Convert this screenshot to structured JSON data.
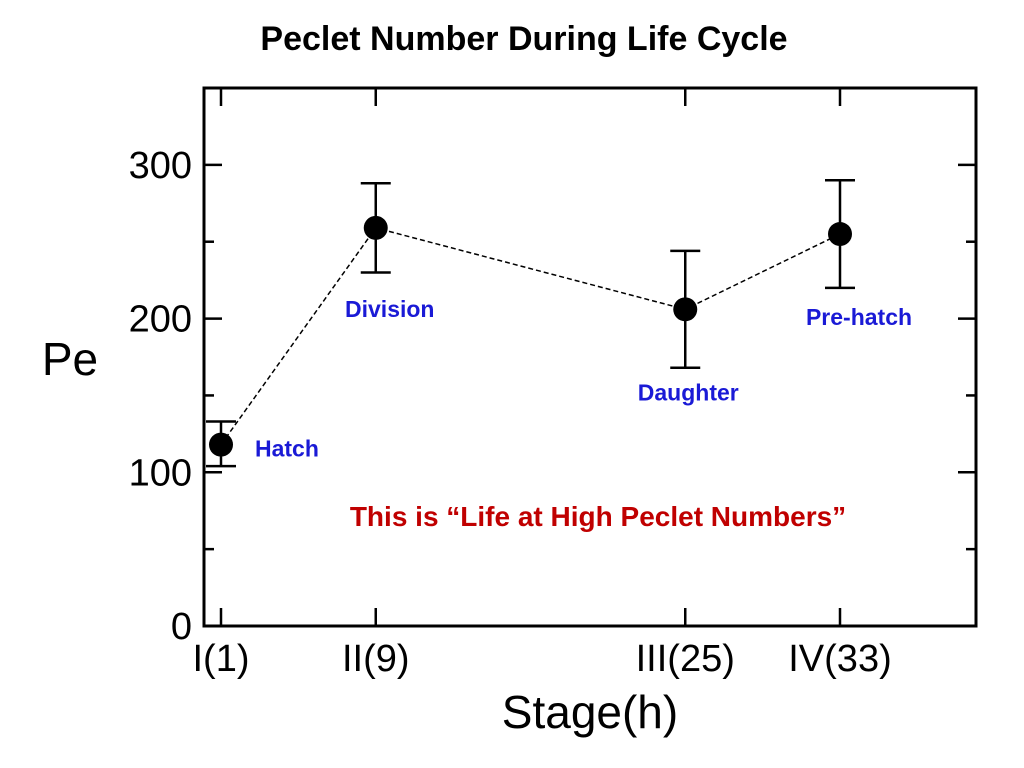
{
  "chart_data": {
    "type": "line",
    "title": "Peclet Number During Life Cycle",
    "xlabel": "Stage(h)",
    "ylabel": "Pe",
    "x": [
      1,
      9,
      25,
      33
    ],
    "categories": [
      "I(1)",
      "II(9)",
      "III(25)",
      "IV(33)"
    ],
    "ylim": [
      0,
      350
    ],
    "yticks": [
      0,
      100,
      200,
      300
    ],
    "yticks_minor": [
      50,
      150,
      250
    ],
    "series": [
      {
        "values": [
          118,
          259,
          206,
          255
        ],
        "err_low": [
          104,
          230,
          168,
          220
        ],
        "err_high": [
          133,
          288,
          244,
          290
        ]
      }
    ],
    "point_labels": [
      "Hatch",
      "Division",
      "Daughter",
      "Pre-hatch"
    ],
    "annotation": "This is “Life at High Peclet Numbers”",
    "colors": {
      "line": "#000000",
      "point_label": "#1a1ad6",
      "annotation": "#c00000"
    },
    "grid": false
  }
}
